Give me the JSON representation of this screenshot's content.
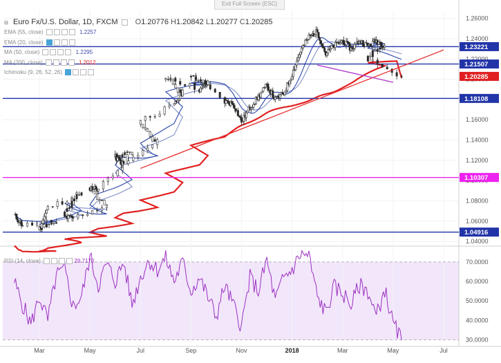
{
  "window": {
    "exit_fullscreen_label": "Exit Full Screen (ESC)"
  },
  "legend": {
    "symbol": "Euro Fx/U.S. Dollar, 1D, FXCM",
    "ohlc": [
      {
        "k": "O",
        "v": "1.20776"
      },
      {
        "k": "H",
        "v": "1.20842"
      },
      {
        "k": "L",
        "v": "1.20277"
      },
      {
        "k": "C",
        "v": "1.20285"
      }
    ],
    "indicators": [
      {
        "label": "EMA (55, close)",
        "value": "1.2257",
        "color": "#3f4aa8"
      },
      {
        "label": "EMA (20, close)",
        "value": "",
        "color": "#3f4aa8"
      },
      {
        "label": "MA (50, close)",
        "value": "1.2295",
        "color": "#3f4aa8"
      },
      {
        "label": "MA (200, close)",
        "value": "1.2012",
        "color": "#e02020"
      },
      {
        "label": "Ichimoku (9, 26, 52, 26)",
        "value": "",
        "color": "#3f4aa8"
      }
    ],
    "rsi_label": "RSI (14, close)",
    "rsi_value": "29.7170"
  },
  "colors": {
    "candle_up": "#2b2b2b",
    "candle_down": "#2b2b2b",
    "ema55": "#2a45a8",
    "ma50": "#7f8fc6",
    "ma200": "#e02020",
    "level_line": "#2134a8",
    "magenta_line": "#ee22ee",
    "trend_red": "#e83030",
    "trend_violet": "#b033c8",
    "rsi_line": "#9b30c0",
    "rsi_band": "#f2e6fb",
    "last_price": "#e02020"
  },
  "chart_data": [
    {
      "type": "candlestick",
      "title": "",
      "x_axis": {
        "ticks": [
          "Mar",
          "May",
          "Jul",
          "Sep",
          "Nov",
          "2018",
          "Mar",
          "May",
          "Jul"
        ],
        "bold_ticks": [
          "2018"
        ]
      },
      "y_axis": {
        "ticks": [
          "1.04000",
          "1.06000",
          "1.08000",
          "1.10000",
          "1.12000",
          "1.14000",
          "1.16000",
          "1.18000",
          "1.20000",
          "1.22000",
          "1.24000",
          "1.26000"
        ],
        "range": [
          1.038,
          1.268
        ]
      },
      "price_labels": [
        {
          "value": "1.23221",
          "color": "#2134a8"
        },
        {
          "value": "1.21507",
          "color": "#2134a8"
        },
        {
          "value": "1.20285",
          "color": "#e02020"
        },
        {
          "value": "1.18108",
          "color": "#2134a8"
        },
        {
          "value": "1.10307",
          "color": "#ee22ee"
        },
        {
          "value": "1.04916",
          "color": "#2134a8"
        }
      ],
      "horizontal_levels": [
        {
          "value": 1.23221,
          "color": "#2134a8"
        },
        {
          "value": 1.21507,
          "color": "#2134a8"
        },
        {
          "value": 1.18108,
          "color": "#2134a8"
        },
        {
          "value": 1.10307,
          "color": "#ee22ee"
        },
        {
          "value": 1.04916,
          "color": "#2134a8"
        }
      ],
      "trendlines": [
        {
          "from": [
            "Jul",
            1.112
          ],
          "to": [
            "Jul 2018",
            1.229
          ],
          "color": "#e83030"
        },
        {
          "from": [
            "Feb 2018",
            1.214
          ],
          "to": [
            "May 2018",
            1.197
          ],
          "color": "#b033c8"
        }
      ],
      "close_path": [
        [
          "Feb",
          1.066
        ],
        [
          "Feb",
          1.056
        ],
        [
          "Mar",
          1.059
        ],
        [
          "Mar",
          1.053
        ],
        [
          "Mar",
          1.073
        ],
        [
          "Apr",
          1.088
        ],
        [
          "Apr",
          1.064
        ],
        [
          "Apr",
          1.063
        ],
        [
          "May",
          1.076
        ],
        [
          "May",
          1.093
        ],
        [
          "May",
          1.092
        ],
        [
          "Jun",
          1.128
        ],
        [
          "Jun",
          1.123
        ],
        [
          "Jun",
          1.116
        ],
        [
          "Jul",
          1.138
        ],
        [
          "Jul",
          1.16
        ],
        [
          "Aug",
          1.174
        ],
        [
          "Aug",
          1.188
        ],
        [
          "Aug",
          1.203
        ],
        [
          "Sep",
          1.19
        ],
        [
          "Sep",
          1.196
        ],
        [
          "Sep",
          1.204
        ],
        [
          "Oct",
          1.178
        ],
        [
          "Oct",
          1.176
        ],
        [
          "Nov",
          1.158
        ],
        [
          "Nov",
          1.172
        ],
        [
          "Nov",
          1.183
        ],
        [
          "Dec",
          1.194
        ],
        [
          "Dec",
          1.18
        ],
        [
          "Dec",
          1.186
        ],
        [
          "Jan 2018",
          1.205
        ],
        [
          "Jan 2018",
          1.228
        ],
        [
          "Jan 2018",
          1.242
        ],
        [
          "Feb 2018",
          1.247
        ],
        [
          "Feb 2018",
          1.225
        ],
        [
          "Feb 2018",
          1.233
        ],
        [
          "Mar 2018",
          1.238
        ],
        [
          "Mar 2018",
          1.23
        ],
        [
          "Mar 2018",
          1.238
        ],
        [
          "Apr 2018",
          1.233
        ],
        [
          "Apr 2018",
          1.238
        ],
        [
          "Apr 2018",
          1.234
        ],
        [
          "Apr 2018",
          1.22
        ],
        [
          "May 2018",
          1.203
        ]
      ],
      "last_close": 1.20285,
      "ma200_value": 1.2012,
      "ema55_value": 1.2257,
      "ma50_value": 1.2295
    },
    {
      "type": "line",
      "title": "",
      "name": "RSI (14, close)",
      "y_axis": {
        "ticks": [
          "30.0000",
          "40.0000",
          "50.0000",
          "60.0000",
          "70.0000"
        ],
        "range": [
          28,
          76
        ]
      },
      "band": [
        30,
        70
      ],
      "last_value": 29.717,
      "series_path": [
        [
          "Feb",
          60
        ],
        [
          "Feb",
          48
        ],
        [
          "Feb",
          38
        ],
        [
          "Mar",
          52
        ],
        [
          "Mar",
          40
        ],
        [
          "Mar",
          63
        ],
        [
          "Apr",
          66
        ],
        [
          "Apr",
          47
        ],
        [
          "Apr",
          52
        ],
        [
          "May",
          73
        ],
        [
          "May",
          58
        ],
        [
          "May",
          69
        ],
        [
          "Jun",
          60
        ],
        [
          "Jun",
          70
        ],
        [
          "Jun",
          48
        ],
        [
          "Jul",
          62
        ],
        [
          "Jul",
          71
        ],
        [
          "Jul",
          66
        ],
        [
          "Aug",
          72
        ],
        [
          "Aug",
          60
        ],
        [
          "Aug",
          70
        ],
        [
          "Sep",
          55
        ],
        [
          "Sep",
          62
        ],
        [
          "Sep",
          52
        ],
        [
          "Oct",
          42
        ],
        [
          "Oct",
          58
        ],
        [
          "Oct",
          48
        ],
        [
          "Nov",
          37
        ],
        [
          "Nov",
          62
        ],
        [
          "Nov",
          55
        ],
        [
          "Dec",
          71
        ],
        [
          "Dec",
          50
        ],
        [
          "Dec",
          62
        ],
        [
          "Jan 2018",
          66
        ],
        [
          "Jan 2018",
          74
        ],
        [
          "Jan 2018",
          73
        ],
        [
          "Feb 2018",
          52
        ],
        [
          "Feb 2018",
          44
        ],
        [
          "Feb 2018",
          57
        ],
        [
          "Mar 2018",
          54
        ],
        [
          "Mar 2018",
          48
        ],
        [
          "Mar 2018",
          58
        ],
        [
          "Apr 2018",
          55
        ],
        [
          "Apr 2018",
          42
        ],
        [
          "Apr 2018",
          56
        ],
        [
          "May 2018",
          38
        ],
        [
          "May 2018",
          30
        ]
      ]
    }
  ]
}
